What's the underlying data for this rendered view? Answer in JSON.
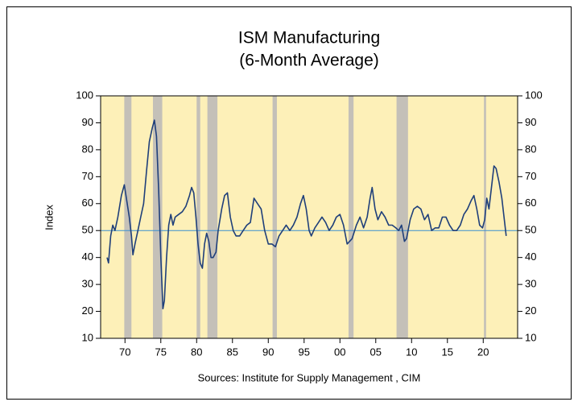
{
  "chart_data": {
    "type": "line",
    "title": "ISM Manufacturing",
    "subtitle": "(6-Month Average)",
    "y_label": "Index",
    "source": "Sources: Institute for Supply Management , CIM",
    "xlim": [
      1966.6,
      2024.8
    ],
    "xticks": [
      {
        "value": 1970,
        "label": "70"
      },
      {
        "value": 1975,
        "label": "75"
      },
      {
        "value": 1980,
        "label": "80"
      },
      {
        "value": 1985,
        "label": "85"
      },
      {
        "value": 1990,
        "label": "90"
      },
      {
        "value": 1995,
        "label": "95"
      },
      {
        "value": 2000,
        "label": "00"
      },
      {
        "value": 2005,
        "label": "05"
      },
      {
        "value": 2010,
        "label": "10"
      },
      {
        "value": 2015,
        "label": "15"
      },
      {
        "value": 2020,
        "label": "20"
      }
    ],
    "ylim": [
      10,
      100
    ],
    "yticks": [
      10,
      20,
      30,
      40,
      50,
      60,
      70,
      80,
      90,
      100
    ],
    "y2lim": [
      10,
      100
    ],
    "y2ticks": [
      10,
      20,
      30,
      40,
      50,
      60,
      70,
      80,
      90,
      100
    ],
    "reference_line": 50,
    "reference_color": "#3a8fd0",
    "background_color": "#fdf0b8",
    "shade_color": "#c4c0b8",
    "shaded_periods": [
      [
        1969.9,
        1970.9
      ],
      [
        1973.9,
        1975.2
      ],
      [
        1980.0,
        1980.5
      ],
      [
        1981.5,
        1982.9
      ],
      [
        1990.6,
        1991.2
      ],
      [
        2001.2,
        2001.9
      ],
      [
        2007.9,
        2009.5
      ],
      [
        2020.1,
        2020.4
      ]
    ],
    "color": "#1f3f7a",
    "x": [
      1967.5,
      1967.7,
      1968.0,
      1968.3,
      1968.6,
      1969.0,
      1969.5,
      1969.9,
      1970.2,
      1970.6,
      1970.9,
      1971.1,
      1971.4,
      1971.8,
      1972.2,
      1972.6,
      1973.0,
      1973.4,
      1973.8,
      1974.1,
      1974.4,
      1974.7,
      1975.0,
      1975.3,
      1975.5,
      1975.8,
      1976.1,
      1976.4,
      1976.7,
      1977.0,
      1977.5,
      1978.0,
      1978.5,
      1979.0,
      1979.3,
      1979.6,
      1979.9,
      1980.2,
      1980.5,
      1980.8,
      1981.1,
      1981.4,
      1981.7,
      1982.0,
      1982.3,
      1982.7,
      1983.0,
      1983.5,
      1983.9,
      1984.3,
      1984.7,
      1985.1,
      1985.5,
      1986.0,
      1986.5,
      1987.0,
      1987.5,
      1988.0,
      1988.5,
      1989.0,
      1989.5,
      1990.0,
      1990.5,
      1991.0,
      1991.5,
      1992.0,
      1992.5,
      1993.0,
      1993.5,
      1994.0,
      1994.5,
      1994.9,
      1995.3,
      1995.7,
      1996.0,
      1996.5,
      1997.0,
      1997.5,
      1998.0,
      1998.5,
      1999.0,
      1999.5,
      2000.0,
      2000.5,
      2001.0,
      2001.7,
      2002.3,
      2002.8,
      2003.3,
      2003.8,
      2004.2,
      2004.5,
      2004.9,
      2005.3,
      2005.8,
      2006.3,
      2006.8,
      2007.3,
      2007.8,
      2008.2,
      2008.6,
      2009.0,
      2009.3,
      2009.8,
      2010.3,
      2010.8,
      2011.3,
      2011.8,
      2012.3,
      2012.8,
      2013.3,
      2013.8,
      2014.3,
      2014.8,
      2015.3,
      2015.8,
      2016.3,
      2016.8,
      2017.3,
      2017.8,
      2018.3,
      2018.7,
      2019.1,
      2019.5,
      2019.9,
      2020.2,
      2020.5,
      2020.8,
      2021.1,
      2021.5,
      2021.8,
      2022.2,
      2022.6,
      2022.9,
      2023.2
    ],
    "values": [
      40,
      38,
      48,
      52,
      50,
      55,
      63,
      67,
      62,
      55,
      48,
      41,
      45,
      50,
      55,
      60,
      72,
      83,
      88,
      91,
      85,
      65,
      40,
      21,
      24,
      40,
      52,
      56,
      52,
      55,
      56,
      57,
      59,
      63,
      66,
      64,
      55,
      45,
      38,
      36,
      45,
      49,
      46,
      40,
      40,
      42,
      50,
      58,
      63,
      64,
      55,
      50,
      48,
      48,
      50,
      52,
      53,
      62,
      60,
      58,
      50,
      45,
      45,
      44,
      48,
      50,
      52,
      50,
      52,
      55,
      60,
      63,
      58,
      50,
      48,
      51,
      53,
      55,
      53,
      50,
      52,
      55,
      56,
      52,
      45,
      47,
      52,
      55,
      51,
      55,
      62,
      66,
      58,
      54,
      57,
      55,
      52,
      52,
      51,
      50,
      52,
      46,
      47,
      54,
      58,
      59,
      58,
      54,
      56,
      50,
      51,
      51,
      55,
      55,
      52,
      50,
      50,
      52,
      56,
      58,
      61,
      63,
      58,
      52,
      51,
      54,
      62,
      58,
      65,
      74,
      73,
      68,
      62,
      55,
      48
    ]
  }
}
